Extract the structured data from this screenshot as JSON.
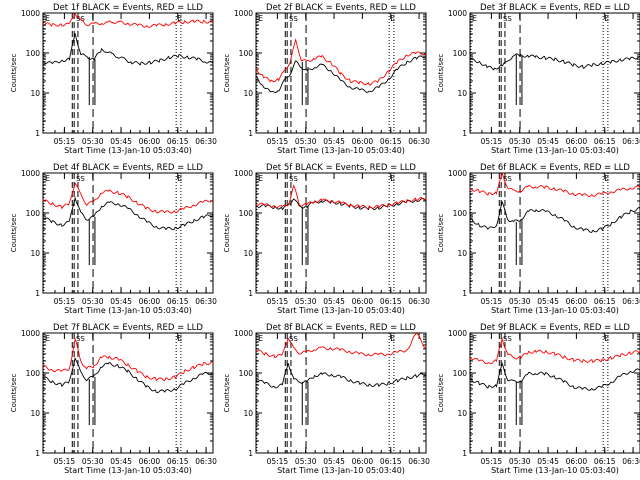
{
  "figure": {
    "title_template": "Det {n}f BLACK = Events, RED = LLD",
    "xlabel": "Start Time (13-Jan-10 05:03:40)",
    "ylabel": "Counts/sec",
    "xtick_labels": [
      "05:15",
      "05:30",
      "05:45",
      "06:00",
      "06:15",
      "06:30"
    ],
    "ytick_labels": [
      "1",
      "10",
      "100",
      "1000"
    ],
    "flag_labels": {
      "start": "E",
      "cluster": "SS",
      "end": "E"
    },
    "colors": {
      "events": "#000000",
      "lld": "#ff0000",
      "axes": "#000000",
      "background": "#ffffff"
    }
  },
  "chart_data": [
    {
      "type": "line",
      "title": "Det 1f BLACK = Events, RED = LLD",
      "xlabel": "Start Time (13-Jan-10 05:03:40)",
      "ylabel": "Counts/sec",
      "yscale": "log",
      "ylim": [
        1,
        1000
      ],
      "x_unit": "minutes after 05:03:40",
      "series": [
        {
          "name": "Events",
          "color": "#000000",
          "x": [
            0,
            5,
            10,
            14,
            17,
            20,
            23,
            27,
            31,
            34,
            37,
            40,
            43,
            47,
            52,
            57,
            62,
            67,
            72,
            77,
            82,
            86,
            90
          ],
          "y": [
            60,
            55,
            65,
            70,
            300,
            95,
            80,
            70,
            120,
            110,
            90,
            80,
            70,
            58,
            55,
            58,
            65,
            78,
            85,
            78,
            70,
            62,
            55
          ]
        },
        {
          "name": "LLD",
          "color": "#ff0000",
          "x": [
            0,
            5,
            10,
            14,
            17,
            20,
            23,
            27,
            31,
            34,
            37,
            40,
            45,
            50,
            55,
            60,
            65,
            70,
            75,
            80,
            85,
            90
          ],
          "y": [
            560,
            500,
            510,
            520,
            1000,
            650,
            520,
            530,
            560,
            580,
            590,
            600,
            550,
            500,
            470,
            490,
            520,
            560,
            600,
            620,
            610,
            600
          ]
        }
      ]
    },
    {
      "type": "line",
      "title": "Det 2f BLACK = Events, RED = LLD",
      "xlabel": "Start Time (13-Jan-10 05:03:40)",
      "ylabel": "Counts/sec",
      "yscale": "log",
      "ylim": [
        1,
        1000
      ],
      "series": [
        {
          "name": "Events",
          "color": "#000000",
          "x": [
            0,
            4,
            8,
            12,
            15,
            18,
            21,
            24,
            27,
            31,
            35,
            40,
            45,
            50,
            55,
            60,
            65,
            70,
            75,
            80,
            85,
            90
          ],
          "y": [
            25,
            15,
            10,
            12,
            20,
            30,
            60,
            45,
            35,
            45,
            50,
            35,
            20,
            14,
            12,
            11,
            14,
            22,
            40,
            60,
            75,
            85
          ]
        },
        {
          "name": "LLD",
          "color": "#ff0000",
          "x": [
            0,
            4,
            8,
            12,
            15,
            18,
            21,
            24,
            27,
            31,
            35,
            40,
            45,
            50,
            55,
            60,
            65,
            70,
            75,
            80,
            85,
            90
          ],
          "y": [
            40,
            25,
            20,
            22,
            35,
            60,
            200,
            70,
            60,
            75,
            80,
            55,
            30,
            20,
            18,
            17,
            20,
            35,
            60,
            90,
            100,
            95
          ]
        }
      ]
    },
    {
      "type": "line",
      "title": "Det 3f BLACK = Events, RED = LLD",
      "xlabel": "Start Time (13-Jan-10 05:03:40)",
      "ylabel": "Counts/sec",
      "yscale": "log",
      "ylim": [
        1,
        1000
      ],
      "series": [
        {
          "name": "Events",
          "color": "#000000",
          "x": [
            0,
            5,
            9,
            13,
            17,
            20,
            23,
            27,
            31,
            35,
            40,
            45,
            50,
            55,
            60,
            65,
            70,
            75,
            80,
            85,
            90
          ],
          "y": [
            70,
            60,
            45,
            40,
            50,
            60,
            90,
            85,
            85,
            80,
            75,
            70,
            60,
            50,
            45,
            50,
            55,
            60,
            68,
            72,
            80
          ]
        }
      ]
    },
    {
      "type": "line",
      "title": "Det 4f BLACK = Events, RED = LLD",
      "xlabel": "Start Time (13-Jan-10 05:03:40)",
      "ylabel": "Counts/sec",
      "yscale": "log",
      "ylim": [
        1,
        1000
      ],
      "series": [
        {
          "name": "Events",
          "color": "#000000",
          "x": [
            0,
            5,
            10,
            14,
            17,
            20,
            23,
            27,
            31,
            35,
            40,
            45,
            50,
            55,
            60,
            65,
            70,
            75,
            80,
            85,
            90
          ],
          "y": [
            80,
            60,
            50,
            60,
            250,
            100,
            70,
            80,
            150,
            180,
            170,
            130,
            90,
            60,
            45,
            40,
            42,
            50,
            65,
            80,
            90
          ]
        },
        {
          "name": "LLD",
          "color": "#ff0000",
          "x": [
            0,
            5,
            10,
            14,
            17,
            20,
            23,
            27,
            31,
            35,
            40,
            45,
            50,
            55,
            60,
            65,
            70,
            75,
            80,
            85,
            90
          ],
          "y": [
            210,
            170,
            140,
            170,
            600,
            280,
            170,
            190,
            330,
            350,
            320,
            250,
            180,
            130,
            110,
            105,
            110,
            130,
            160,
            190,
            210
          ]
        }
      ]
    },
    {
      "type": "line",
      "title": "Det 5f BLACK = Events, RED = LLD",
      "xlabel": "Start Time (13-Jan-10 05:03:40)",
      "ylabel": "Counts/sec",
      "yscale": "log",
      "ylim": [
        1,
        1000
      ],
      "series": [
        {
          "name": "Events",
          "color": "#000000",
          "x": [
            0,
            5,
            10,
            14,
            17,
            20,
            23,
            27,
            31,
            35,
            40,
            45,
            50,
            55,
            60,
            65,
            70,
            75,
            80,
            85,
            90
          ],
          "y": [
            150,
            150,
            140,
            130,
            150,
            240,
            140,
            150,
            185,
            200,
            190,
            170,
            150,
            135,
            130,
            135,
            150,
            170,
            190,
            210,
            220
          ]
        },
        {
          "name": "LLD",
          "color": "#ff0000",
          "x": [
            0,
            5,
            10,
            14,
            17,
            20,
            23,
            27,
            31,
            35,
            40,
            45,
            50,
            55,
            60,
            65,
            70,
            75,
            80,
            85,
            90
          ],
          "y": [
            170,
            160,
            150,
            140,
            160,
            480,
            160,
            165,
            195,
            210,
            200,
            180,
            160,
            145,
            140,
            145,
            160,
            180,
            200,
            220,
            230
          ]
        }
      ]
    },
    {
      "type": "line",
      "title": "Det 6f BLACK = Events, RED = LLD",
      "xlabel": "Start Time (13-Jan-10 05:03:40)",
      "ylabel": "Counts/sec",
      "yscale": "log",
      "ylim": [
        1,
        1000
      ],
      "series": [
        {
          "name": "Events",
          "color": "#000000",
          "x": [
            0,
            5,
            10,
            14,
            17,
            20,
            23,
            27,
            31,
            35,
            40,
            45,
            50,
            55,
            60,
            65,
            70,
            75,
            80,
            85,
            90
          ],
          "y": [
            70,
            50,
            40,
            50,
            180,
            70,
            60,
            70,
            110,
            120,
            110,
            90,
            65,
            45,
            38,
            35,
            40,
            55,
            80,
            110,
            130
          ]
        },
        {
          "name": "LLD",
          "color": "#ff0000",
          "x": [
            0,
            5,
            10,
            14,
            17,
            20,
            23,
            27,
            31,
            35,
            40,
            45,
            50,
            55,
            60,
            65,
            70,
            75,
            80,
            85,
            90
          ],
          "y": [
            400,
            350,
            300,
            330,
            900,
            450,
            350,
            370,
            450,
            460,
            440,
            400,
            350,
            300,
            280,
            280,
            300,
            340,
            380,
            420,
            450
          ]
        }
      ]
    },
    {
      "type": "line",
      "title": "Det 7f BLACK = Events, RED = LLD",
      "xlabel": "Start Time (13-Jan-10 05:03:40)",
      "ylabel": "Counts/sec",
      "yscale": "log",
      "ylim": [
        1,
        1000
      ],
      "series": [
        {
          "name": "Events",
          "color": "#000000",
          "x": [
            0,
            5,
            10,
            14,
            17,
            20,
            23,
            27,
            31,
            35,
            40,
            45,
            50,
            55,
            60,
            65,
            70,
            75,
            80,
            85,
            90
          ],
          "y": [
            80,
            60,
            50,
            60,
            250,
            100,
            70,
            80,
            150,
            170,
            150,
            110,
            70,
            45,
            35,
            35,
            40,
            55,
            75,
            95,
            100
          ]
        },
        {
          "name": "LLD",
          "color": "#ff0000",
          "x": [
            0,
            5,
            10,
            14,
            17,
            20,
            23,
            27,
            31,
            35,
            40,
            45,
            50,
            55,
            60,
            65,
            70,
            75,
            80,
            85,
            90
          ],
          "y": [
            150,
            120,
            110,
            130,
            700,
            200,
            130,
            150,
            250,
            250,
            220,
            160,
            110,
            80,
            70,
            70,
            80,
            110,
            140,
            170,
            180
          ]
        }
      ]
    },
    {
      "type": "line",
      "title": "Det 8f BLACK = Events, RED = LLD",
      "xlabel": "Start Time (13-Jan-10 05:03:40)",
      "ylabel": "Counts/sec",
      "yscale": "log",
      "ylim": [
        1,
        1000
      ],
      "series": [
        {
          "name": "Events",
          "color": "#000000",
          "x": [
            0,
            5,
            10,
            14,
            17,
            20,
            23,
            27,
            31,
            35,
            40,
            45,
            50,
            55,
            60,
            65,
            70,
            75,
            80,
            85,
            90
          ],
          "y": [
            70,
            55,
            45,
            50,
            180,
            70,
            60,
            60,
            85,
            95,
            90,
            80,
            65,
            55,
            50,
            50,
            55,
            65,
            75,
            85,
            95
          ]
        },
        {
          "name": "LLD",
          "color": "#ff0000",
          "x": [
            0,
            5,
            10,
            14,
            17,
            20,
            23,
            27,
            31,
            35,
            40,
            45,
            50,
            55,
            60,
            65,
            70,
            75,
            80,
            85,
            90
          ],
          "y": [
            380,
            300,
            260,
            280,
            800,
            400,
            320,
            330,
            400,
            420,
            410,
            380,
            340,
            300,
            290,
            290,
            300,
            330,
            380,
            1000,
            400
          ]
        }
      ]
    },
    {
      "type": "line",
      "title": "Det 9f BLACK = Events, RED = LLD",
      "xlabel": "Start Time (13-Jan-10 05:03:40)",
      "ylabel": "Counts/sec",
      "yscale": "log",
      "ylim": [
        1,
        1000
      ],
      "series": [
        {
          "name": "Events",
          "color": "#000000",
          "x": [
            0,
            5,
            10,
            14,
            17,
            20,
            23,
            27,
            31,
            35,
            40,
            45,
            50,
            55,
            60,
            65,
            70,
            75,
            80,
            85,
            90
          ],
          "y": [
            70,
            55,
            45,
            50,
            160,
            70,
            60,
            65,
            95,
            100,
            95,
            80,
            60,
            45,
            40,
            40,
            45,
            60,
            85,
            110,
            120
          ]
        },
        {
          "name": "LLD",
          "color": "#ff0000",
          "x": [
            0,
            5,
            10,
            14,
            17,
            20,
            23,
            27,
            31,
            35,
            40,
            45,
            50,
            55,
            60,
            65,
            70,
            75,
            80,
            85,
            90
          ],
          "y": [
            250,
            200,
            180,
            200,
            700,
            300,
            240,
            250,
            330,
            350,
            340,
            300,
            250,
            210,
            200,
            200,
            210,
            240,
            280,
            320,
            350
          ]
        }
      ]
    }
  ]
}
